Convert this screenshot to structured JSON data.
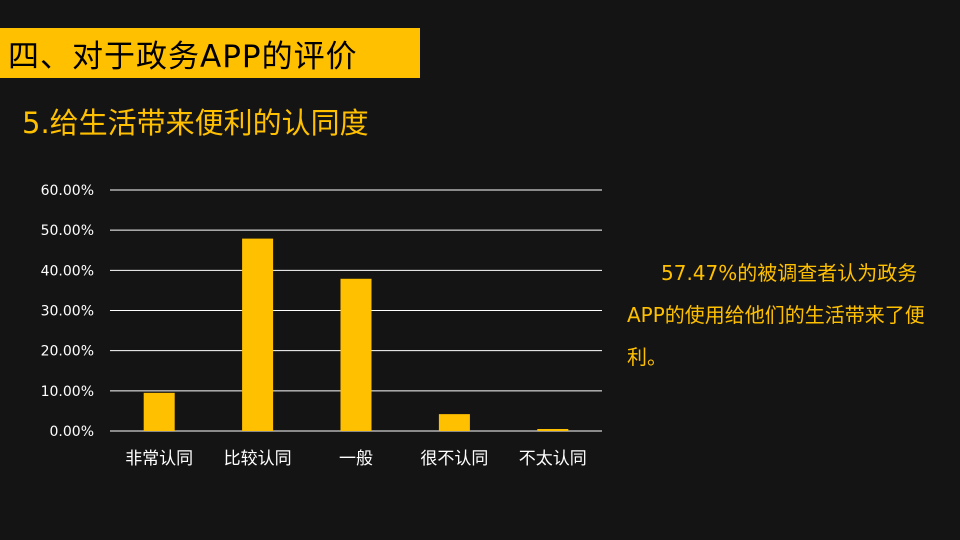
{
  "header": {
    "title": "四、对于政务APP的评价",
    "subtitle": "5.给生活带来便利的认同度"
  },
  "colors": {
    "accent": "#FFC000",
    "background": "#141414",
    "gridline": "#FFFFFF",
    "tick_text": "#FFFFFF"
  },
  "chart_data": {
    "type": "bar",
    "categories": [
      "非常认同",
      "比较认同",
      "一般",
      "很不认同",
      "不太认同"
    ],
    "values": [
      9.5,
      47.9,
      37.9,
      4.2,
      0.5
    ],
    "y_tick_labels": [
      "0.00%",
      "10.00%",
      "20.00%",
      "30.00%",
      "40.00%",
      "50.00%",
      "60.00%"
    ],
    "ylim": [
      0,
      60
    ],
    "grid": true,
    "legend": "none"
  },
  "side_note": {
    "text": "57.47%的被调查者认为政务APP的使用给他们的生活带来了便利。"
  }
}
